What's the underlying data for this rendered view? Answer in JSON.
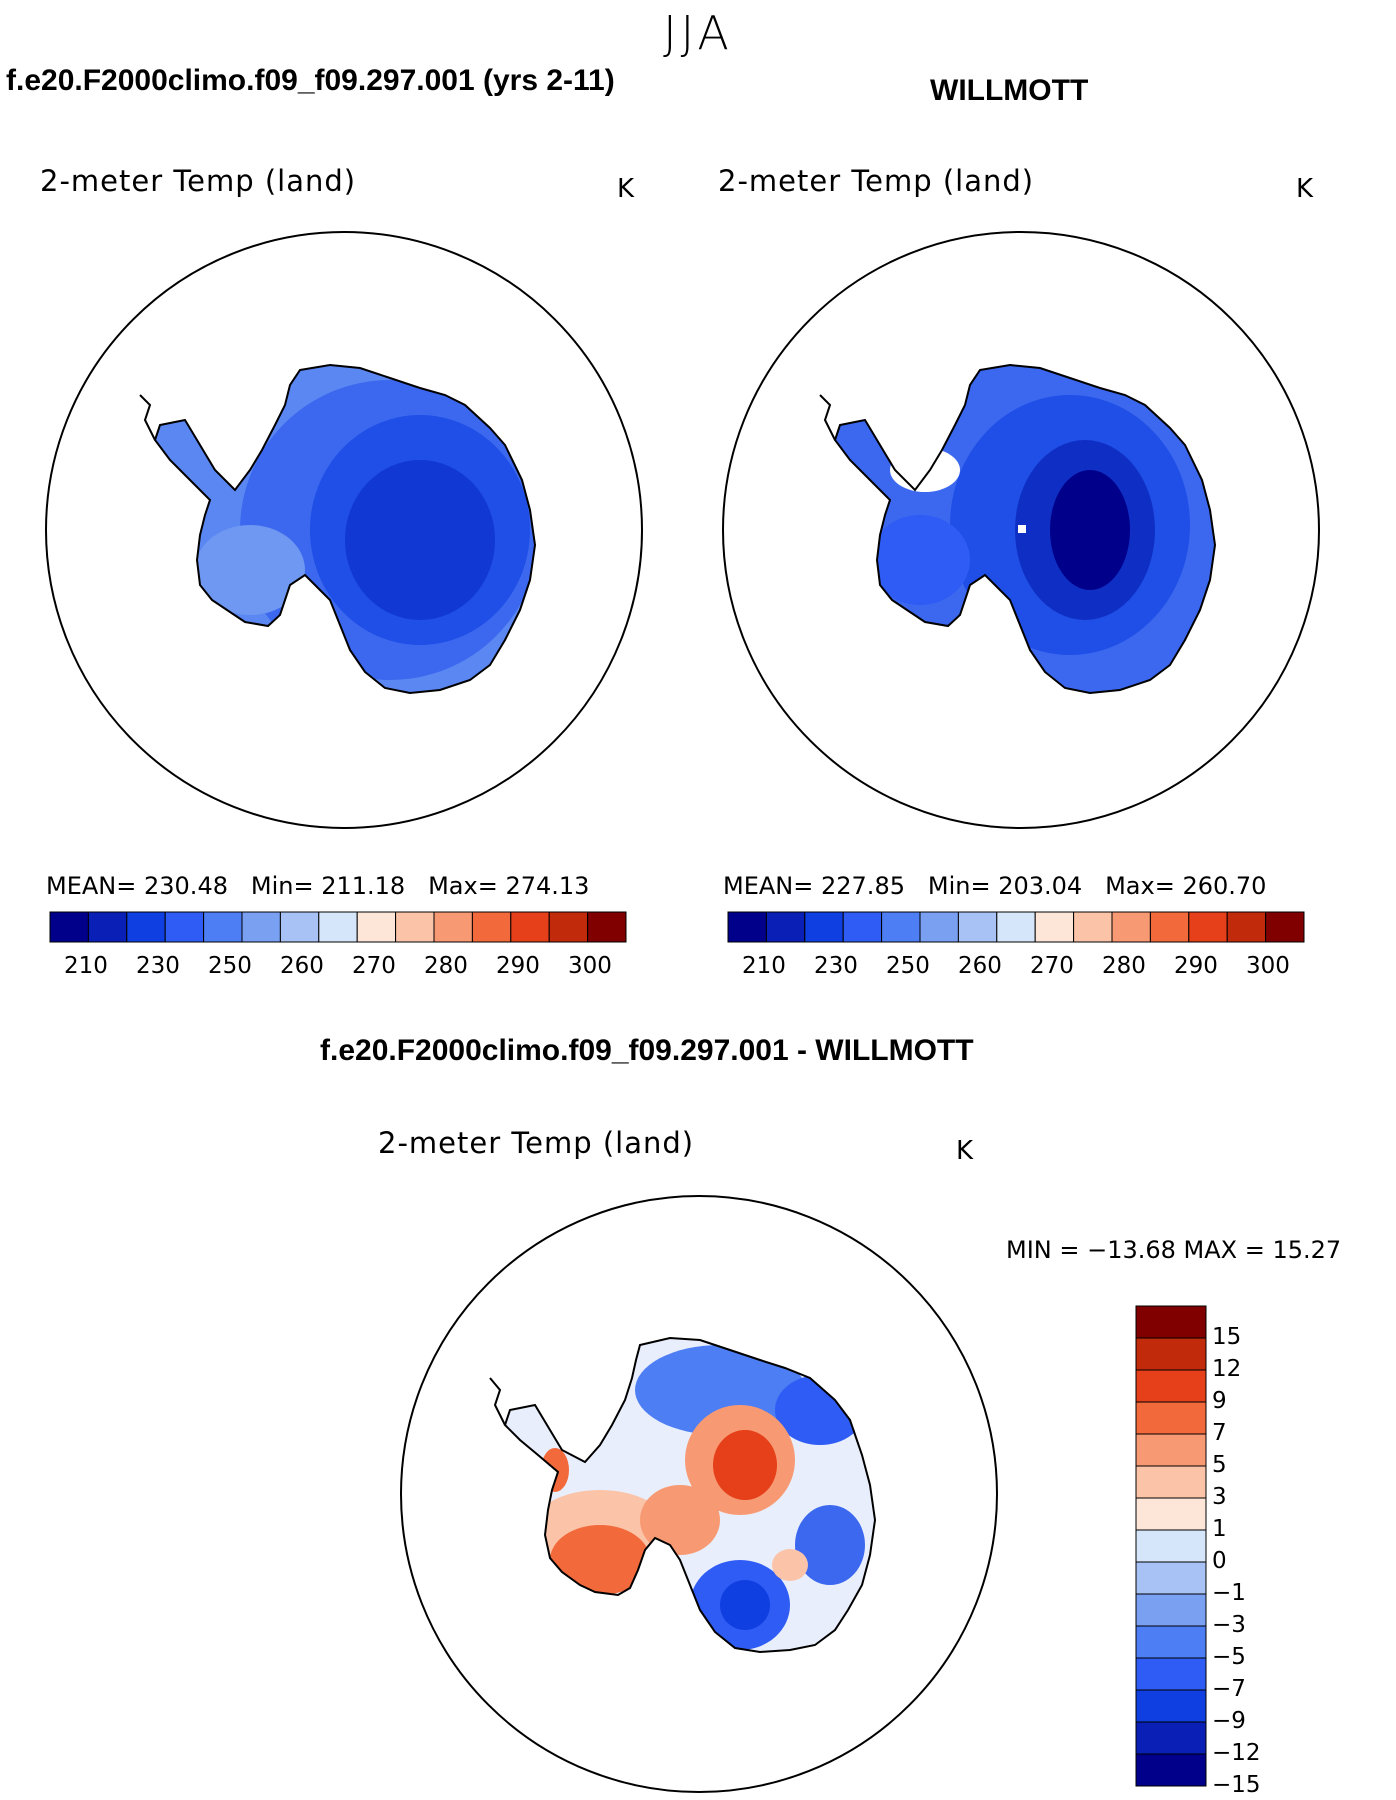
{
  "figure": {
    "season_title": "JJA"
  },
  "panels": [
    {
      "case_title": "f.e20.F2000climo.f09_f09.297.001 (yrs 2-11)",
      "variable": "2-meter Temp (land)",
      "units": "K",
      "stats": {
        "mean_label": "MEAN=",
        "mean": "230.48",
        "min_label": "Min=",
        "min": "211.18",
        "max_label": "Max=",
        "max": "274.13"
      }
    },
    {
      "case_title": "WILLMOTT",
      "variable": "2-meter Temp (land)",
      "units": "K",
      "stats": {
        "mean_label": "MEAN=",
        "mean": "227.85",
        "min_label": "Min=",
        "min": "203.04",
        "max_label": "Max=",
        "max": "260.70"
      }
    },
    {
      "case_title": "f.e20.F2000climo.f09_f09.297.001 - WILLMOTT",
      "variable": "2-meter Temp (land)",
      "units": "K",
      "stats": {
        "text": "MIN = −13.68 MAX =   15.27"
      }
    }
  ],
  "colorbar_abs": {
    "colors": [
      "#00008b",
      "#0a1fb5",
      "#0f3fe0",
      "#2e5cf4",
      "#4d7ef3",
      "#7aa0f2",
      "#a8c2f5",
      "#d6e6fa",
      "#fde6d8",
      "#fbc3a7",
      "#f79a73",
      "#f26a3c",
      "#e5401a",
      "#c12a0a",
      "#800000"
    ],
    "tick_labels": [
      "210",
      "230",
      "250",
      "260",
      "270",
      "280",
      "290",
      "300"
    ]
  },
  "colorbar_diff": {
    "colors": [
      "#00008b",
      "#0a1fb5",
      "#0f3fe0",
      "#2e5cf4",
      "#4d7ef3",
      "#7aa0f2",
      "#a8c2f5",
      "#d6e6fa",
      "#fde6d8",
      "#fbc3a7",
      "#f79a73",
      "#f26a3c",
      "#e5401a",
      "#c12a0a",
      "#800000"
    ],
    "tick_labels": [
      "−15",
      "−12",
      "−9",
      "−7",
      "−5",
      "−3",
      "−1",
      "0",
      "1",
      "3",
      "5",
      "7",
      "9",
      "12",
      "15"
    ]
  }
}
